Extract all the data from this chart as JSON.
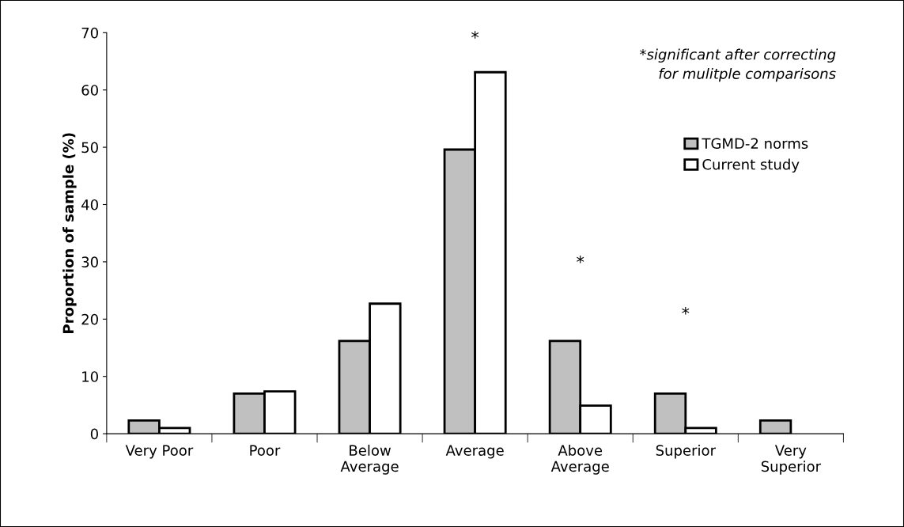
{
  "chart_data": {
    "type": "bar",
    "ylabel": "Proportion of sample (%)",
    "categories": [
      "Very Poor",
      "Poor",
      "Below\nAverage",
      "Average",
      "Above\nAverage",
      "Superior",
      "Very\nSuperior"
    ],
    "series": [
      {
        "name": "TGMD-2 norms",
        "color": "#c0c0c0",
        "values": [
          2.3,
          7.0,
          16.2,
          49.6,
          16.2,
          7.0,
          2.3
        ]
      },
      {
        "name": "Current study",
        "color": "#ffffff",
        "values": [
          1.0,
          7.4,
          22.7,
          63.1,
          4.9,
          1.0,
          null
        ]
      }
    ],
    "ylim": [
      0,
      70
    ],
    "yticks": [
      0,
      10,
      20,
      30,
      40,
      50,
      60,
      70
    ],
    "grid": false,
    "legend": "top right",
    "annotations": [
      "*",
      "*",
      "*",
      "*significant after correcting\nfor mulitple comparisons"
    ]
  }
}
